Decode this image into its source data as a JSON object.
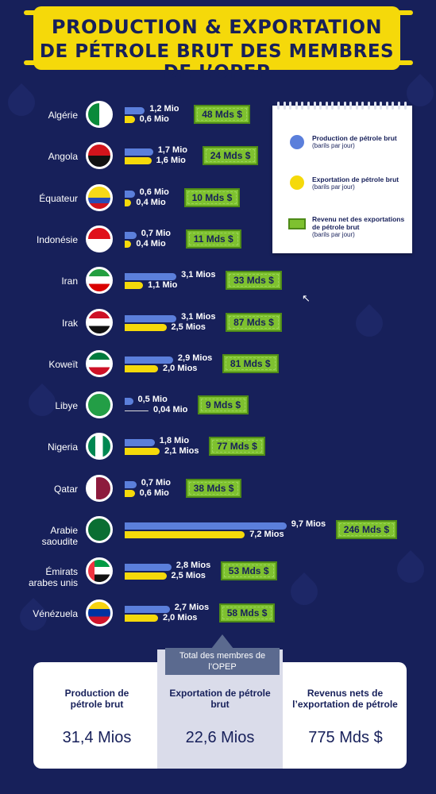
{
  "title_line1": "PRODUCTION & EXPORTATION",
  "title_line2": "DE PÉTROLE BRUT DES MEMBRES DE L’OPEP",
  "legend": {
    "production_title": "Production de pétrole brut",
    "production_sub": "(barils par jour)",
    "export_title": "Exportation de pétrole brut",
    "export_sub": "(barils par jour)",
    "revenue_title": "Revenu net des exportations de pétrole brut",
    "revenue_sub": "(barils par jour)"
  },
  "summary": {
    "tag": "Total des membres de l’OPEP",
    "production_label": "Production de pétrole brut",
    "production_value": "31,4 Mios",
    "export_label": "Exportation de pétrole brut",
    "export_value": "22,6 Mios",
    "revenue_label": "Revenus nets de l’exportation de pétrole",
    "revenue_value": "775 Mds $"
  },
  "colors": {
    "background": "#17205a",
    "production": "#5b7fdb",
    "export": "#f5d90a",
    "revenue": "#7ec12f"
  },
  "chart_data": {
    "type": "bar",
    "unit": "millions de barils par jour",
    "categories": [
      "Algérie",
      "Angola",
      "Équateur",
      "Indonésie",
      "Iran",
      "Irak",
      "Koweït",
      "Libye",
      "Nigeria",
      "Qatar",
      "Arabie saoudite",
      "Émirats arabes unis",
      "Vénézuela"
    ],
    "series": [
      {
        "name": "Production de pétrole brut",
        "values": [
          1.2,
          1.7,
          0.6,
          0.7,
          3.1,
          3.1,
          2.9,
          0.5,
          1.8,
          0.7,
          9.7,
          2.8,
          2.7
        ],
        "labels": [
          "1,2 Mio",
          "1,7 Mio",
          "0,6 Mio",
          "0,7 Mio",
          "3,1 Mios",
          "3,1 Mios",
          "2,9 Mios",
          "0,5 Mio",
          "1,8 Mio",
          "0,7 Mio",
          "9,7 Mios",
          "2,8 Mios",
          "2,7 Mios"
        ]
      },
      {
        "name": "Exportation de pétrole brut",
        "values": [
          0.6,
          1.6,
          0.4,
          0.4,
          1.1,
          2.5,
          2.0,
          0.04,
          2.1,
          0.6,
          7.2,
          2.5,
          2.0
        ],
        "labels": [
          "0,6 Mio",
          "1,6 Mio",
          "0,4 Mio",
          "0,4 Mio",
          "1,1 Mio",
          "2,5 Mios",
          "2,0 Mios",
          "0,04 Mio",
          "2,1 Mios",
          "0,6 Mio",
          "7,2 Mios",
          "2,5 Mios",
          "2,0 Mios"
        ]
      },
      {
        "name": "Revenu net des exportations de pétrole brut",
        "values": [
          48,
          24,
          10,
          11,
          33,
          87,
          81,
          9,
          77,
          38,
          246,
          53,
          58
        ],
        "labels": [
          "48 Mds $",
          "24 Mds $",
          "10 Mds $",
          "11 Mds $",
          "33 Mds $",
          "87 Mds $",
          "81 Mds $",
          "9 Mds $",
          "77 Mds $",
          "38 Mds $",
          "246 Mds $",
          "53 Mds $",
          "58 Mds $"
        ]
      }
    ]
  }
}
